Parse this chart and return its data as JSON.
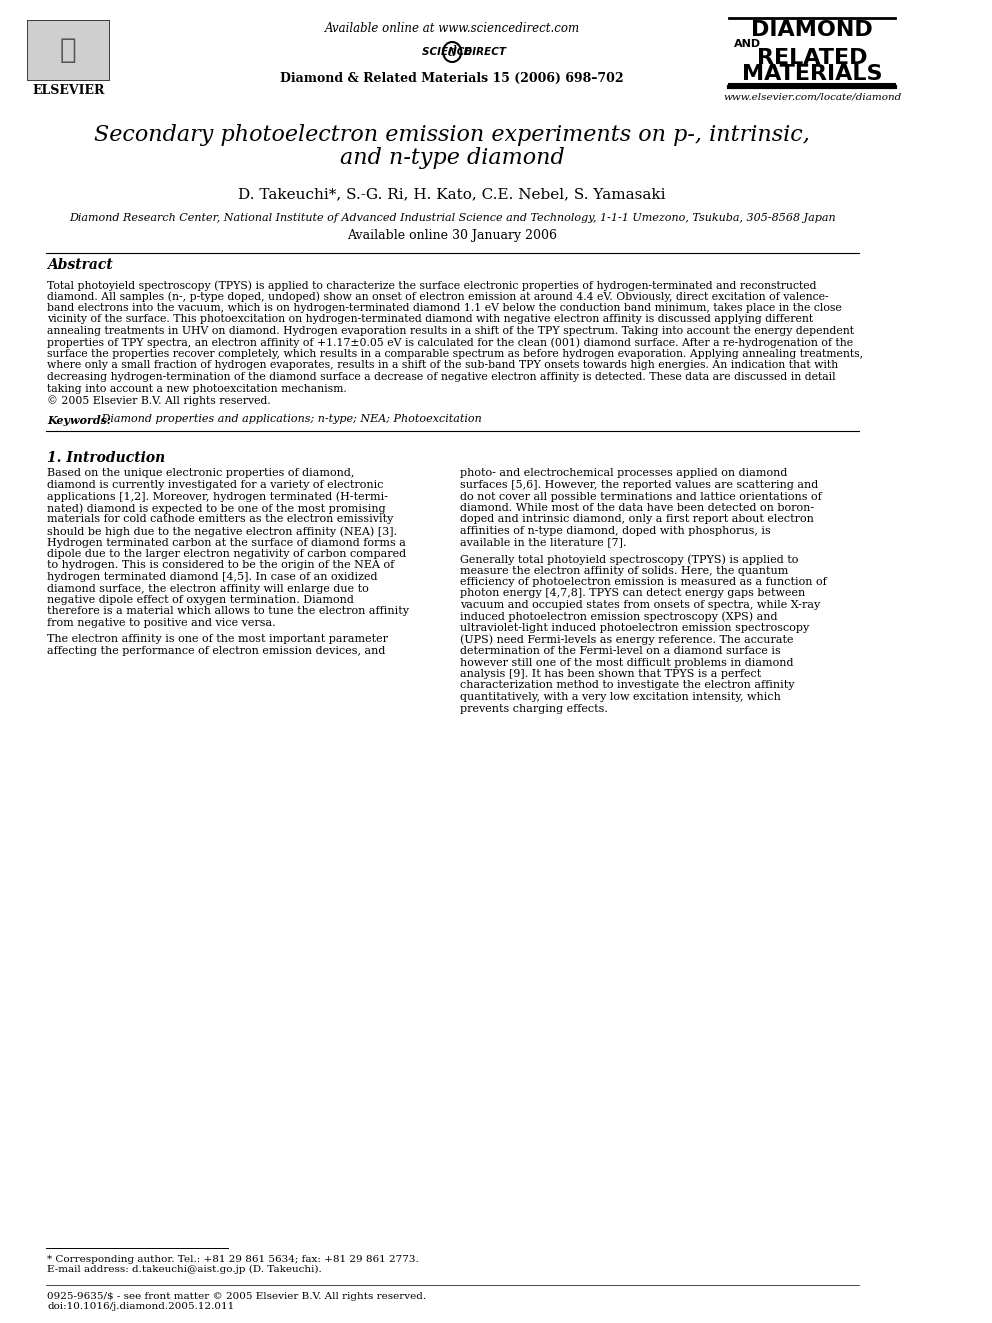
{
  "bg_color": "#ffffff",
  "header_available_online": "Available online at www.sciencedirect.com",
  "header_journal_ref": "Diamond & Related Materials 15 (2006) 698–702",
  "header_website": "www.elsevier.com/locate/diamond",
  "journal_title_line1": "DIAMOND",
  "journal_title_and": "AND",
  "journal_title_line2": "RELATED",
  "journal_title_line3": "MATERIALS",
  "paper_title": "Secondary photoelectron emission experiments on p-, intrinsic,\nand n-type diamond",
  "authors": "D. Takeuchi*, S.-G. Ri, H. Kato, C.E. Nebel, S. Yamasaki",
  "affiliation": "Diamond Research Center, National Institute of Advanced Industrial Science and Technology, 1-1-1 Umezono, Tsukuba, 305-8568 Japan",
  "available_online": "Available online 30 January 2006",
  "abstract_title": "Abstract",
  "abstract_text": "Total photoyield spectroscopy (TPYS) is applied to characterize the surface electronic properties of hydrogen-terminated and reconstructed diamond. All samples (n-, p-type doped, undoped) show an onset of electron emission at around 4.4 eV. Obviously, direct excitation of valence-band electrons into the vacuum, which is on hydrogen-terminated diamond 1.1 eV below the conduction band minimum, takes place in the close vicinity of the surface. This photoexcitation on hydrogen-terminated diamond with negative electron affinity is discussed applying different annealing treatments in UHV on diamond. Hydrogen evaporation results in a shift of the TPY spectrum. Taking into account the energy dependent properties of TPY spectra, an electron affinity of +1.17±0.05 eV is calculated for the clean (001) diamond surface. After a re-hydrogenation of the surface the properties recover completely, which results in a comparable spectrum as before hydrogen evaporation. Applying annealing treatments, where only a small fraction of hydrogen evaporates, results in a shift of the sub-band TPY onsets towards high energies. An indication that with decreasing hydrogen-termination of the diamond surface a decrease of negative electron affinity is detected. These data are discussed in detail taking into account a new photoexcitation mechanism.\n© 2005 Elsevier B.V. All rights reserved.",
  "keywords_label": "Keywords:",
  "keywords_text": " Diamond properties and applications; n-type; NEA; Photoexcitation",
  "section1_title": "1. Introduction",
  "section1_col1": "Based on the unique electronic properties of diamond, diamond is currently investigated for a variety of electronic applications [1,2]. Moreover, hydrogen terminated (H-terminated) diamond is expected to be one of the most promising materials for cold cathode emitters as the electron emissivity should be high due to the negative electron affinity (NEA) [3]. Hydrogen terminated carbon at the surface of diamond forms a dipole due to the larger electron negativity of carbon compared to hydrogen. This is considered to be the origin of the NEA of hydrogen terminated diamond [4,5]. In case of an oxidized diamond surface, the electron affinity will enlarge due to negative dipole effect of oxygen termination. Diamond therefore is a material which allows to tune the electron affinity from negative to positive and vice versa.\n\nThe electron affinity is one of the most important parameter affecting the performance of electron emission devices, and",
  "section1_col2": "photo- and electrochemical processes applied on diamond surfaces [5,6]. However, the reported values are scattering and do not cover all possible terminations and lattice orientations of diamond. While most of the data have been detected on boron-doped and intrinsic diamond, only a first report about electron affinities of n-type diamond, doped with phosphorus, is available in the literature [7].\n\nGenerally total photoyield spectroscopy (TPYS) is applied to measure the electron affinity of solids. Here, the quantum efficiency of photoelectron emission is measured as a function of photon energy [4,7,8]. TPYS can detect energy gaps between vacuum and occupied states from onsets of spectra, while X-ray induced photoelectron emission spectroscopy (XPS) and ultraviolet-light induced photoelectron emission spectroscopy (UPS) need Fermi-levels as energy reference. The accurate determination of the Fermi-level on a diamond surface is however still one of the most difficult problems in diamond analysis [9]. It has been shown that TPYS is a perfect characterization method to investigate the electron affinity quantitatively, with a very low excitation intensity, which prevents charging effects.",
  "footnote_star": "* Corresponding author. Tel.: +81 29 861 5634; fax: +81 29 861 2773.",
  "footnote_email": "E-mail address: d.takeuchi@aist.go.jp (D. Takeuchi).",
  "footer_issn": "0925-9635/$ - see front matter © 2005 Elsevier B.V. All rights reserved.",
  "footer_doi": "doi:10.1016/j.diamond.2005.12.011"
}
